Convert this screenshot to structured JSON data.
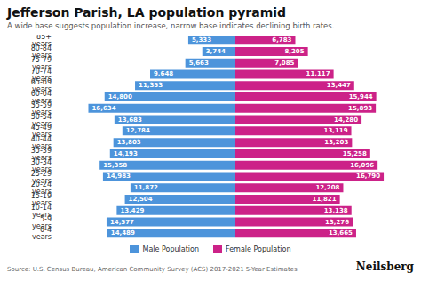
{
  "chart_data": {
    "type": "bar",
    "orientation": "horizontal",
    "title": "Jefferson Parish, LA population pyramid",
    "subtitle": "A wide base suggests population increase, narrow base indicates declining birth rates.",
    "source": "Source: U.S. Census Bureau, American Community Survey (ACS) 2017-2021 5-Year Estimates",
    "annotations": [
      "Neilsberg"
    ],
    "categories": [
      "0-4 years",
      "5-9 years",
      "10-14 years",
      "15-19 years",
      "20-24 years",
      "25-29 years",
      "30-34 years",
      "35-39 years",
      "40-44 years",
      "45-49 years",
      "50-54 years",
      "55-59 years",
      "60-64 years",
      "65-69 years",
      "70-74 years",
      "75-79 years",
      "80-84 years",
      "85+ years"
    ],
    "series": [
      {
        "name": "Male Population",
        "color": "#4d94db",
        "values": [
          14489,
          14577,
          13429,
          12504,
          11872,
          14983,
          15358,
          14193,
          13803,
          12784,
          13683,
          16634,
          14800,
          11353,
          9648,
          5663,
          3744,
          5333
        ],
        "value_labels": [
          "14,489",
          "14,577",
          "13,429",
          "12,504",
          "11,872",
          "14,983",
          "15,358",
          "14,193",
          "13,803",
          "12,784",
          "13,683",
          "16,634",
          "14,800",
          "11,353",
          "9,648",
          "5,663",
          "3,744",
          "5,333"
        ]
      },
      {
        "name": "Female Population",
        "color": "#cc2288",
        "values": [
          13665,
          13276,
          13138,
          11821,
          12208,
          16790,
          16096,
          15258,
          13203,
          13119,
          14280,
          15893,
          15944,
          13447,
          11117,
          7085,
          8205,
          6783
        ],
        "value_labels": [
          "13,665",
          "13,276",
          "13,138",
          "11,821",
          "12,208",
          "16,790",
          "16,096",
          "15,258",
          "13,203",
          "13,119",
          "14,280",
          "15,893",
          "15,944",
          "13,447",
          "11,117",
          "7,085",
          "8,205",
          "6,783"
        ]
      }
    ],
    "xlim": [
      -20000,
      20000
    ],
    "tick_labels": "y",
    "data_labels": true,
    "grid": false,
    "legend": "bottom"
  }
}
